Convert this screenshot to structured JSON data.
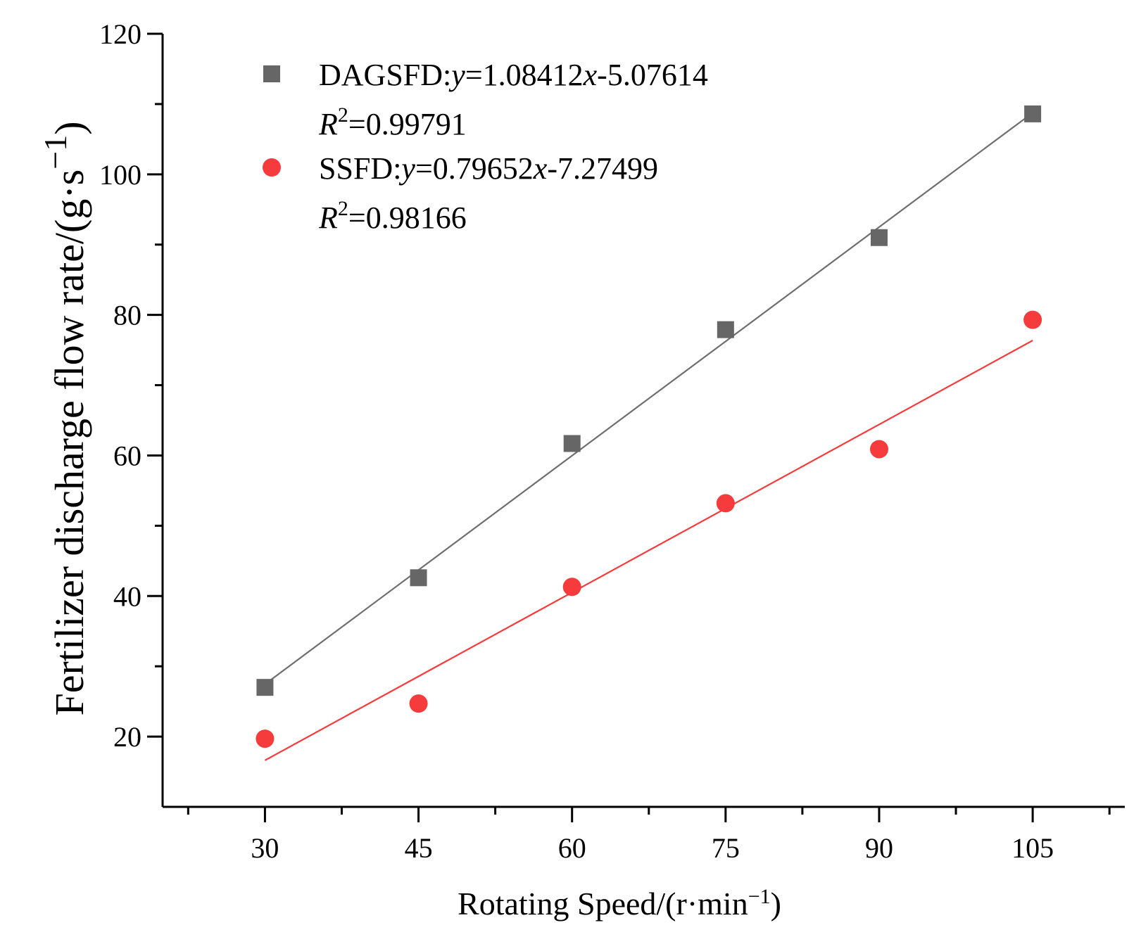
{
  "chart_data": {
    "type": "scatter",
    "title": "",
    "xlabel": "Rotating Speed/(r·min",
    "xlabel_sup": "−1",
    "xlabel_close": ")",
    "ylabel": "Fertilizer discharge flow rate/(g·s",
    "ylabel_sup": "−1",
    "ylabel_close": ")",
    "xlim": [
      20,
      114
    ],
    "ylim": [
      10,
      120
    ],
    "x": [
      30,
      45,
      60,
      75,
      90,
      105
    ],
    "x_ticks": [
      30,
      45,
      60,
      75,
      90,
      105
    ],
    "x_tick_labels": [
      "30",
      "45",
      "60",
      "75",
      "90",
      "105"
    ],
    "y_ticks": [
      20,
      40,
      60,
      80,
      100,
      120
    ],
    "y_tick_labels": [
      "20",
      "40",
      "60",
      "80",
      "100",
      "120"
    ],
    "legend_position": "top-left",
    "series": [
      {
        "name": "DAGSFD",
        "marker": "square",
        "color": "#666666",
        "fit_color": "#6e6e6e",
        "values": [
          27.0,
          42.6,
          61.7,
          77.9,
          91.0,
          108.6
        ],
        "fit": {
          "slope": 1.08412,
          "intercept": -5.07614
        },
        "legend_name": "DAGSFD:",
        "eq_y": "y",
        "eq_mid": "=1.08412",
        "eq_x": "x",
        "eq_tail": "-5.07614",
        "r2_label": "R",
        "r2_sup": "2",
        "r2_value": "=0.99791"
      },
      {
        "name": "SSFD",
        "marker": "circle",
        "color": "#f53b3b",
        "fit_color": "#f53b3b",
        "values": [
          19.7,
          24.7,
          41.3,
          53.2,
          60.9,
          79.3
        ],
        "fit": {
          "slope": 0.79652,
          "intercept": -7.27499
        },
        "legend_name": "SSFD:",
        "eq_y": "y",
        "eq_mid": "=0.79652",
        "eq_x": "x",
        "eq_tail": "-7.27499",
        "r2_label": "R",
        "r2_sup": "2",
        "r2_value": "=0.98166"
      }
    ]
  }
}
